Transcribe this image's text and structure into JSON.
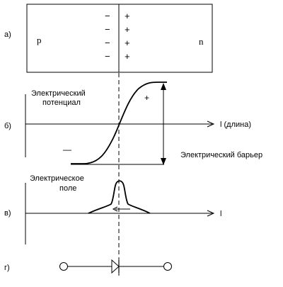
{
  "panels": [
    {
      "label": "а)"
    },
    {
      "label": "б)"
    },
    {
      "label": "в)"
    },
    {
      "label": "г)"
    }
  ],
  "pn_junction": {
    "p_label": "p",
    "n_label": "n",
    "minus_sign": "−",
    "plus_sign": "+",
    "charge_rows": 4
  },
  "potential_graph": {
    "ylabel_line1": "Электрический",
    "ylabel_line2": "потенциал",
    "xlabel": "l (длина)",
    "plus_mark": "+",
    "minus_mark": "—",
    "barrier_label": "Электрический барьер"
  },
  "field_graph": {
    "ylabel_line1": "Электрическое",
    "ylabel_line2": "поле",
    "xlabel": "l"
  }
}
